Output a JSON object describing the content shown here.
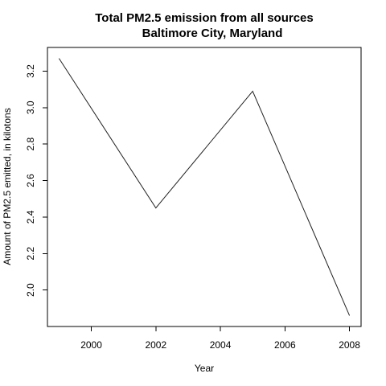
{
  "chart_data": {
    "type": "line",
    "title": "Total PM2.5 emission from all sources",
    "subtitle": "Baltimore City, Maryland",
    "xlabel": "Year",
    "ylabel": "Amount of PM2.5 emitted, in kilotons",
    "x": [
      1999,
      2002,
      2005,
      2008
    ],
    "series": [
      {
        "values": [
          3.27,
          2.45,
          3.09,
          1.86
        ]
      }
    ],
    "xlim": [
      1998.64,
      2008.36
    ],
    "ylim": [
      1.8,
      3.33
    ],
    "xticks": [
      2000,
      2002,
      2004,
      2006,
      2008
    ],
    "yticks": [
      2.0,
      2.2,
      2.4,
      2.6,
      2.8,
      3.0,
      3.2
    ],
    "xtick_labels": [
      "2000",
      "2002",
      "2004",
      "2006",
      "2008"
    ],
    "ytick_labels": [
      "2.0",
      "2.2",
      "2.4",
      "2.6",
      "2.8",
      "3.0",
      "3.2"
    ],
    "grid": false,
    "legend": "none"
  }
}
